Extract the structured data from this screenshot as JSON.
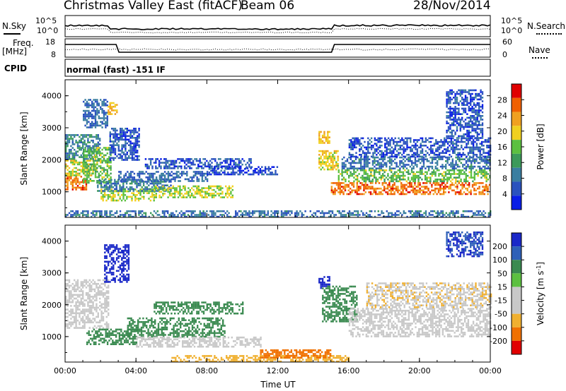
{
  "header": {
    "title": "Christmas Valley East (fitACF)",
    "beam": "Beam 06",
    "date": "28/Nov/2014"
  },
  "status_panels": {
    "nsky_label": "N.Sky",
    "nsky_ticks": [
      "10^5",
      "10^0"
    ],
    "nsearch_label": "N.Search",
    "nsearch_ticks": [
      "10^5",
      "10^0"
    ],
    "freq_label": "Freq.",
    "freq_unit": "[MHz]",
    "freq_ticks": [
      "18",
      "8"
    ],
    "nave_label": "Nave",
    "nave_ticks": [
      "60",
      "0"
    ],
    "cpid_label": "CPID",
    "cpid_value": "normal (fast) -151 IF"
  },
  "colors": {
    "power": [
      "#0a1ee6",
      "#2a52be",
      "#3a7ea0",
      "#3c9a5a",
      "#5cc040",
      "#f0d020",
      "#f0a020",
      "#f06000",
      "#e00000"
    ],
    "velocity": [
      "#1a28c8",
      "#2e60b8",
      "#3a8a50",
      "#5cc040",
      "#c8c8c8",
      "#c8c8c8",
      "#f0b030",
      "#f07000",
      "#e00000"
    ]
  },
  "chart_data": [
    {
      "type": "heatmap",
      "panel": "power",
      "ylabel": "Slant Range [km]",
      "yticks": [
        "1000",
        "2000",
        "3000",
        "4000"
      ],
      "ylim": [
        200,
        4500
      ],
      "xlim": [
        0,
        24
      ],
      "xticks": [
        "00:00",
        "04:00",
        "08:00",
        "12:00",
        "16:00",
        "20:00",
        "00:00"
      ],
      "colorbar_label": "Power [dB]",
      "colorbar_ticks": [
        "4",
        "8",
        "12",
        "16",
        "20",
        "24",
        "28"
      ],
      "colorbar_range": [
        0,
        32
      ],
      "regions": [
        {
          "t0": 0.0,
          "t1": 1.2,
          "r0": 1050,
          "r1": 1500,
          "v": 29
        },
        {
          "t0": 0.0,
          "t1": 1.8,
          "r0": 1500,
          "r1": 2000,
          "v": 21
        },
        {
          "t0": 0.0,
          "t1": 2.0,
          "r0": 2000,
          "r1": 2800,
          "v": 11
        },
        {
          "t0": 1.0,
          "t1": 2.6,
          "r0": 1300,
          "r1": 2400,
          "v": 17
        },
        {
          "t0": 1.0,
          "t1": 2.4,
          "r0": 3000,
          "r1": 3900,
          "v": 8
        },
        {
          "t0": 2.4,
          "t1": 2.9,
          "r0": 3400,
          "r1": 3800,
          "v": 24
        },
        {
          "t0": 2.5,
          "t1": 4.2,
          "r0": 2000,
          "r1": 3000,
          "v": 6
        },
        {
          "t0": 2.0,
          "t1": 5.0,
          "r0": 750,
          "r1": 1100,
          "v": 20
        },
        {
          "t0": 1.8,
          "t1": 6.0,
          "r0": 1000,
          "r1": 1400,
          "v": 10
        },
        {
          "t0": 3.0,
          "t1": 8.0,
          "r0": 1350,
          "r1": 1650,
          "v": 8
        },
        {
          "t0": 5.0,
          "t1": 9.5,
          "r0": 850,
          "r1": 1200,
          "v": 20
        },
        {
          "t0": 4.5,
          "t1": 10.5,
          "r0": 1750,
          "r1": 2050,
          "v": 6
        },
        {
          "t0": 8.0,
          "t1": 12.0,
          "r0": 1550,
          "r1": 1800,
          "v": 5
        },
        {
          "t0": 0.0,
          "t1": 24.0,
          "r0": 200,
          "r1": 420,
          "v": 9
        },
        {
          "t0": 14.3,
          "t1": 14.9,
          "r0": 2500,
          "r1": 2900,
          "v": 24
        },
        {
          "t0": 14.3,
          "t1": 15.4,
          "r0": 1700,
          "r1": 2300,
          "v": 22
        },
        {
          "t0": 15.0,
          "t1": 24.0,
          "r0": 900,
          "r1": 1300,
          "v": 29
        },
        {
          "t0": 15.4,
          "t1": 24.0,
          "r0": 1300,
          "r1": 1700,
          "v": 17
        },
        {
          "t0": 15.6,
          "t1": 24.0,
          "r0": 1700,
          "r1": 2100,
          "v": 9
        },
        {
          "t0": 16.0,
          "t1": 24.0,
          "r0": 2100,
          "r1": 2700,
          "v": 6
        },
        {
          "t0": 21.5,
          "t1": 23.6,
          "r0": 2700,
          "r1": 4200,
          "v": 6
        }
      ]
    },
    {
      "type": "heatmap",
      "panel": "velocity",
      "ylabel": "Slant Range [km]",
      "yticks": [
        "1000",
        "2000",
        "3000",
        "4000"
      ],
      "ylim": [
        200,
        4500
      ],
      "xlim": [
        0,
        24
      ],
      "xticks": [
        "00:00",
        "04:00",
        "08:00",
        "12:00",
        "16:00",
        "20:00",
        "00:00"
      ],
      "xlabel": "Time UT",
      "colorbar_label": "Velocity [m s^-1]",
      "colorbar_ticks": [
        "200",
        "100",
        "50",
        "15",
        "-15",
        "-50",
        "-100",
        "-200"
      ],
      "colorbar_values": [
        200,
        100,
        50,
        15,
        -15,
        -50,
        -100,
        -200
      ],
      "regions": [
        {
          "t0": 0.0,
          "t1": 2.4,
          "r0": 1300,
          "r1": 2800,
          "v": 0
        },
        {
          "t0": 2.2,
          "t1": 3.6,
          "r0": 2700,
          "r1": 3900,
          "v": 250
        },
        {
          "t0": 1.2,
          "t1": 4.0,
          "r0": 750,
          "r1": 1250,
          "v": 40
        },
        {
          "t0": 3.5,
          "t1": 9.0,
          "r0": 1000,
          "r1": 1600,
          "v": 40
        },
        {
          "t0": 5.0,
          "t1": 10.0,
          "r0": 1700,
          "r1": 2100,
          "v": 40
        },
        {
          "t0": 4.0,
          "t1": 11.0,
          "r0": 700,
          "r1": 1000,
          "v": 10
        },
        {
          "t0": 6.0,
          "t1": 16.0,
          "r0": 220,
          "r1": 420,
          "v": -60
        },
        {
          "t0": 11.0,
          "t1": 15.0,
          "r0": 350,
          "r1": 600,
          "v": -120
        },
        {
          "t0": 14.3,
          "t1": 14.9,
          "r0": 2500,
          "r1": 2900,
          "v": 200
        },
        {
          "t0": 14.5,
          "t1": 16.5,
          "r0": 1500,
          "r1": 2600,
          "v": 40
        },
        {
          "t0": 16.0,
          "t1": 24.0,
          "r0": 1000,
          "r1": 1900,
          "v": 0
        },
        {
          "t0": 17.0,
          "t1": 24.0,
          "r0": 1900,
          "r1": 2700,
          "v": -30
        },
        {
          "t0": 21.5,
          "t1": 23.6,
          "r0": 3500,
          "r1": 4300,
          "v": 150
        }
      ]
    }
  ]
}
